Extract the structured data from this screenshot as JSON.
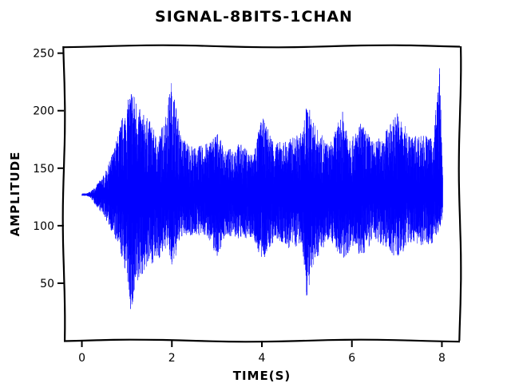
{
  "chart_data": {
    "type": "line",
    "title": "SIGNAL-8BITS-1CHAN",
    "xlabel": "TIME(S)",
    "ylabel": "AMPLITUDE",
    "xlim": [
      -0.4,
      8.4
    ],
    "ylim": [
      0,
      256
    ],
    "xticks": [
      0,
      2,
      4,
      6,
      8
    ],
    "yticks": [
      50,
      100,
      150,
      200,
      250
    ],
    "grid": false,
    "legend": "none",
    "colors": {
      "line": "#0000ff",
      "axes": "#000000",
      "background": "#ffffff"
    },
    "series": [
      {
        "baseline": 127,
        "envelope": {
          "t": [
            0.0,
            0.1,
            0.2,
            0.3,
            0.5,
            0.7,
            0.9,
            1.0,
            1.1,
            1.2,
            1.3,
            1.5,
            1.7,
            1.9,
            2.0,
            2.2,
            2.5,
            2.8,
            3.0,
            3.2,
            3.5,
            3.8,
            4.0,
            4.3,
            4.6,
            4.9,
            5.0,
            5.2,
            5.5,
            5.8,
            6.0,
            6.2,
            6.5,
            6.8,
            7.0,
            7.3,
            7.6,
            7.8,
            7.95,
            8.0,
            8.02
          ],
          "upper": [
            128,
            128,
            130,
            134,
            145,
            165,
            195,
            205,
            222,
            212,
            200,
            192,
            175,
            205,
            228,
            178,
            168,
            172,
            182,
            165,
            172,
            162,
            195,
            172,
            175,
            182,
            208,
            186,
            170,
            200,
            176,
            190,
            172,
            185,
            200,
            178,
            180,
            175,
            240,
            170,
            148
          ],
          "lower": [
            126,
            126,
            124,
            118,
            108,
            92,
            70,
            55,
            20,
            40,
            55,
            66,
            70,
            82,
            60,
            90,
            92,
            90,
            72,
            92,
            88,
            90,
            68,
            88,
            80,
            82,
            36,
            70,
            90,
            68,
            82,
            72,
            88,
            80,
            70,
            85,
            82,
            85,
            96,
            104,
            112
          ]
        }
      }
    ]
  }
}
